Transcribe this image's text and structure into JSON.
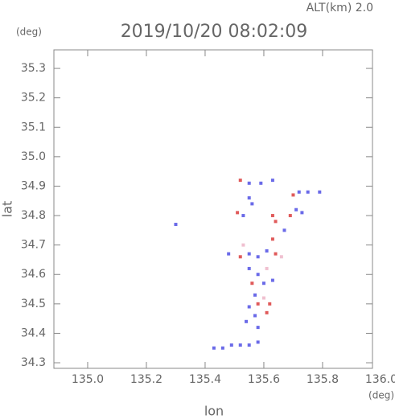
{
  "chart_data": {
    "type": "scatter",
    "title": "2019/10/20 08:02:09",
    "subtitle": "ALT(km) 2.0",
    "y_unit": "(deg)",
    "x_unit": "(deg)",
    "xlabel": "lon",
    "ylabel": "lat",
    "xlim": [
      134.885,
      135.97
    ],
    "ylim": [
      34.281,
      35.363
    ],
    "xticks": [
      {
        "value": 135.0,
        "label": "135.0"
      },
      135.2,
      135.4,
      135.6,
      135.8,
      {
        "value": 136.0,
        "label": "136.0"
      }
    ],
    "yticks": [
      34.3,
      34.4,
      34.5,
      34.6,
      34.7,
      34.8,
      34.9,
      {
        "value": 35.0,
        "label": "35.0"
      },
      35.1,
      35.2,
      35.3
    ],
    "x": [
      135.52,
      135.55,
      135.59,
      135.63,
      135.7,
      135.72,
      135.75,
      135.79,
      135.55,
      135.51,
      135.53,
      135.56,
      135.63,
      135.64,
      135.69,
      135.71,
      135.73,
      135.67,
      135.3,
      135.48,
      135.52,
      135.55,
      135.58,
      135.61,
      135.64,
      135.66,
      135.53,
      135.63,
      135.55,
      135.58,
      135.61,
      135.56,
      135.6,
      135.63,
      135.57,
      135.6,
      135.58,
      135.62,
      135.55,
      135.57,
      135.61,
      135.54,
      135.58,
      135.43,
      135.46,
      135.49,
      135.52,
      135.55,
      135.58
    ],
    "y": [
      34.92,
      34.91,
      34.91,
      34.92,
      34.87,
      34.88,
      34.88,
      34.88,
      34.86,
      34.81,
      34.8,
      34.84,
      34.8,
      34.78,
      34.8,
      34.82,
      34.81,
      34.75,
      34.77,
      34.67,
      34.66,
      34.67,
      34.66,
      34.68,
      34.67,
      34.66,
      34.7,
      34.72,
      34.62,
      34.6,
      34.62,
      34.57,
      34.57,
      34.58,
      34.53,
      34.52,
      34.5,
      34.5,
      34.49,
      34.46,
      34.47,
      34.44,
      34.42,
      34.35,
      34.35,
      34.36,
      34.36,
      34.36,
      34.37
    ],
    "colors": [
      "#e05a5a",
      "#6a6ae8",
      "#6a6ae8",
      "#6a6ae8",
      "#e05a5a",
      "#6a6ae8",
      "#6a6ae8",
      "#6a6ae8",
      "#6a6ae8",
      "#e05a5a",
      "#6a6ae8",
      "#6a6ae8",
      "#e05a5a",
      "#e05a5a",
      "#e05a5a",
      "#6a6ae8",
      "#6a6ae8",
      "#6a6ae8",
      "#6a6ae8",
      "#6a6ae8",
      "#e05a5a",
      "#6a6ae8",
      "#6a6ae8",
      "#6a6ae8",
      "#e05a5a",
      "#f0c0d0",
      "#f0c0d0",
      "#e05a5a",
      "#6a6ae8",
      "#6a6ae8",
      "#f0c0d0",
      "#e05a5a",
      "#6a6ae8",
      "#6a6ae8",
      "#6a6ae8",
      "#f0c0d0",
      "#e05a5a",
      "#e05a5a",
      "#6a6ae8",
      "#6a6ae8",
      "#e05a5a",
      "#6a6ae8",
      "#6a6ae8",
      "#6a6ae8",
      "#6a6ae8",
      "#6a6ae8",
      "#6a6ae8",
      "#6a6ae8",
      "#6a6ae8"
    ]
  }
}
